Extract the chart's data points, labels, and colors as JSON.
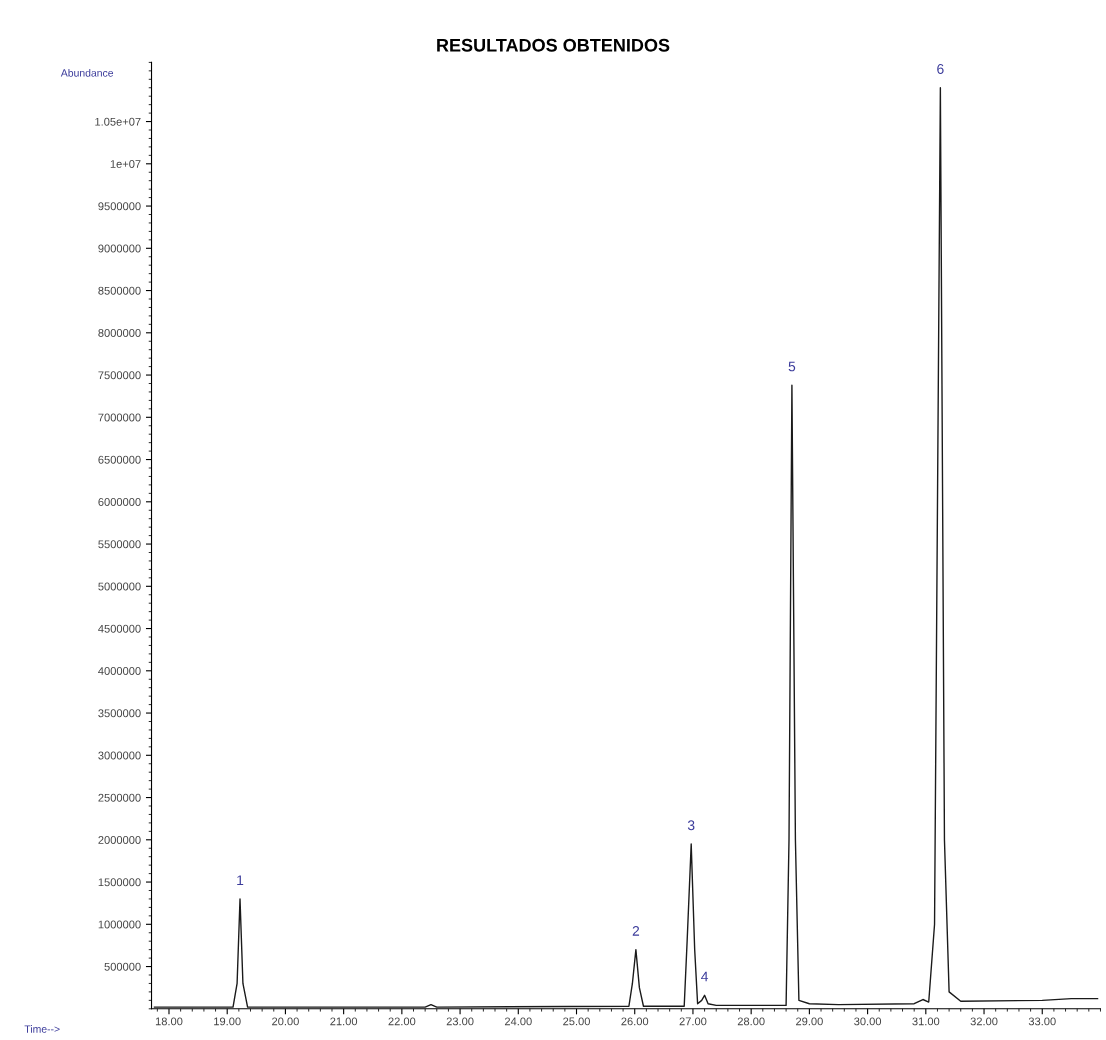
{
  "chart_data": {
    "type": "line",
    "title": "RESULTADOS OBTENIDOS",
    "ylabel": "Abundance",
    "xlabel": "Time-->",
    "x": [
      17.75,
      19.1,
      19.17,
      19.22,
      19.27,
      19.35,
      22.4,
      22.5,
      22.6,
      25.9,
      25.96,
      26.02,
      26.08,
      26.15,
      26.85,
      26.9,
      26.97,
      27.03,
      27.08,
      27.15,
      27.2,
      27.26,
      27.4,
      28.6,
      28.65,
      28.7,
      28.76,
      28.82,
      29.0,
      29.5,
      30.8,
      30.95,
      31.05,
      31.15,
      31.25,
      31.32,
      31.4,
      31.6,
      33.0,
      33.5,
      33.95
    ],
    "series": [
      {
        "color": "#1a1a1a",
        "values": [
          20000,
          20000,
          300000,
          1300000,
          300000,
          20000,
          20000,
          50000,
          20000,
          30000,
          300000,
          700000,
          250000,
          30000,
          30000,
          800000,
          1950000,
          700000,
          60000,
          100000,
          160000,
          60000,
          40000,
          40000,
          2000000,
          7380000,
          2000000,
          100000,
          60000,
          50000,
          60000,
          110000,
          80000,
          1000000,
          10900000,
          2000000,
          200000,
          90000,
          100000,
          120000,
          120000
        ]
      }
    ],
    "xlim": [
      17.7,
      34.0
    ],
    "ylim": [
      0,
      11200000
    ],
    "xticks": [
      {
        "value": 18,
        "label": "18.00"
      },
      {
        "value": 19,
        "label": "19.00"
      },
      {
        "value": 20,
        "label": "20.00"
      },
      {
        "value": 21,
        "label": "21.00"
      },
      {
        "value": 22,
        "label": "22.00"
      },
      {
        "value": 23,
        "label": "23.00"
      },
      {
        "value": 24,
        "label": "24.00"
      },
      {
        "value": 25,
        "label": "25.00"
      },
      {
        "value": 26,
        "label": "26.00"
      },
      {
        "value": 27,
        "label": "27.00"
      },
      {
        "value": 28,
        "label": "28.00"
      },
      {
        "value": 29,
        "label": "29.00"
      },
      {
        "value": 30,
        "label": "30.00"
      },
      {
        "value": 31,
        "label": "31.00"
      },
      {
        "value": 32,
        "label": "32.00"
      },
      {
        "value": 33,
        "label": "33.00"
      }
    ],
    "yticks": [
      500000,
      1000000,
      1500000,
      2000000,
      2500000,
      3000000,
      3500000,
      4000000,
      4500000,
      5000000,
      5500000,
      6000000,
      6500000,
      7000000,
      7500000,
      8000000,
      8500000,
      9000000,
      9500000,
      {
        "value": 10000000,
        "label": "1e+07"
      },
      {
        "value": 10500000,
        "label": "1.05e+07"
      }
    ],
    "annotations": [
      {
        "text": "1",
        "x": 19.22,
        "y": 1300000
      },
      {
        "text": "2",
        "x": 26.02,
        "y": 700000
      },
      {
        "text": "3",
        "x": 26.97,
        "y": 1950000
      },
      {
        "text": "4",
        "x": 27.2,
        "y": 160000
      },
      {
        "text": "5",
        "x": 28.7,
        "y": 7380000
      },
      {
        "text": "6",
        "x": 31.25,
        "y": 10900000
      }
    ],
    "grid": false,
    "legend": false,
    "marker": "none",
    "line_style": "solid"
  }
}
